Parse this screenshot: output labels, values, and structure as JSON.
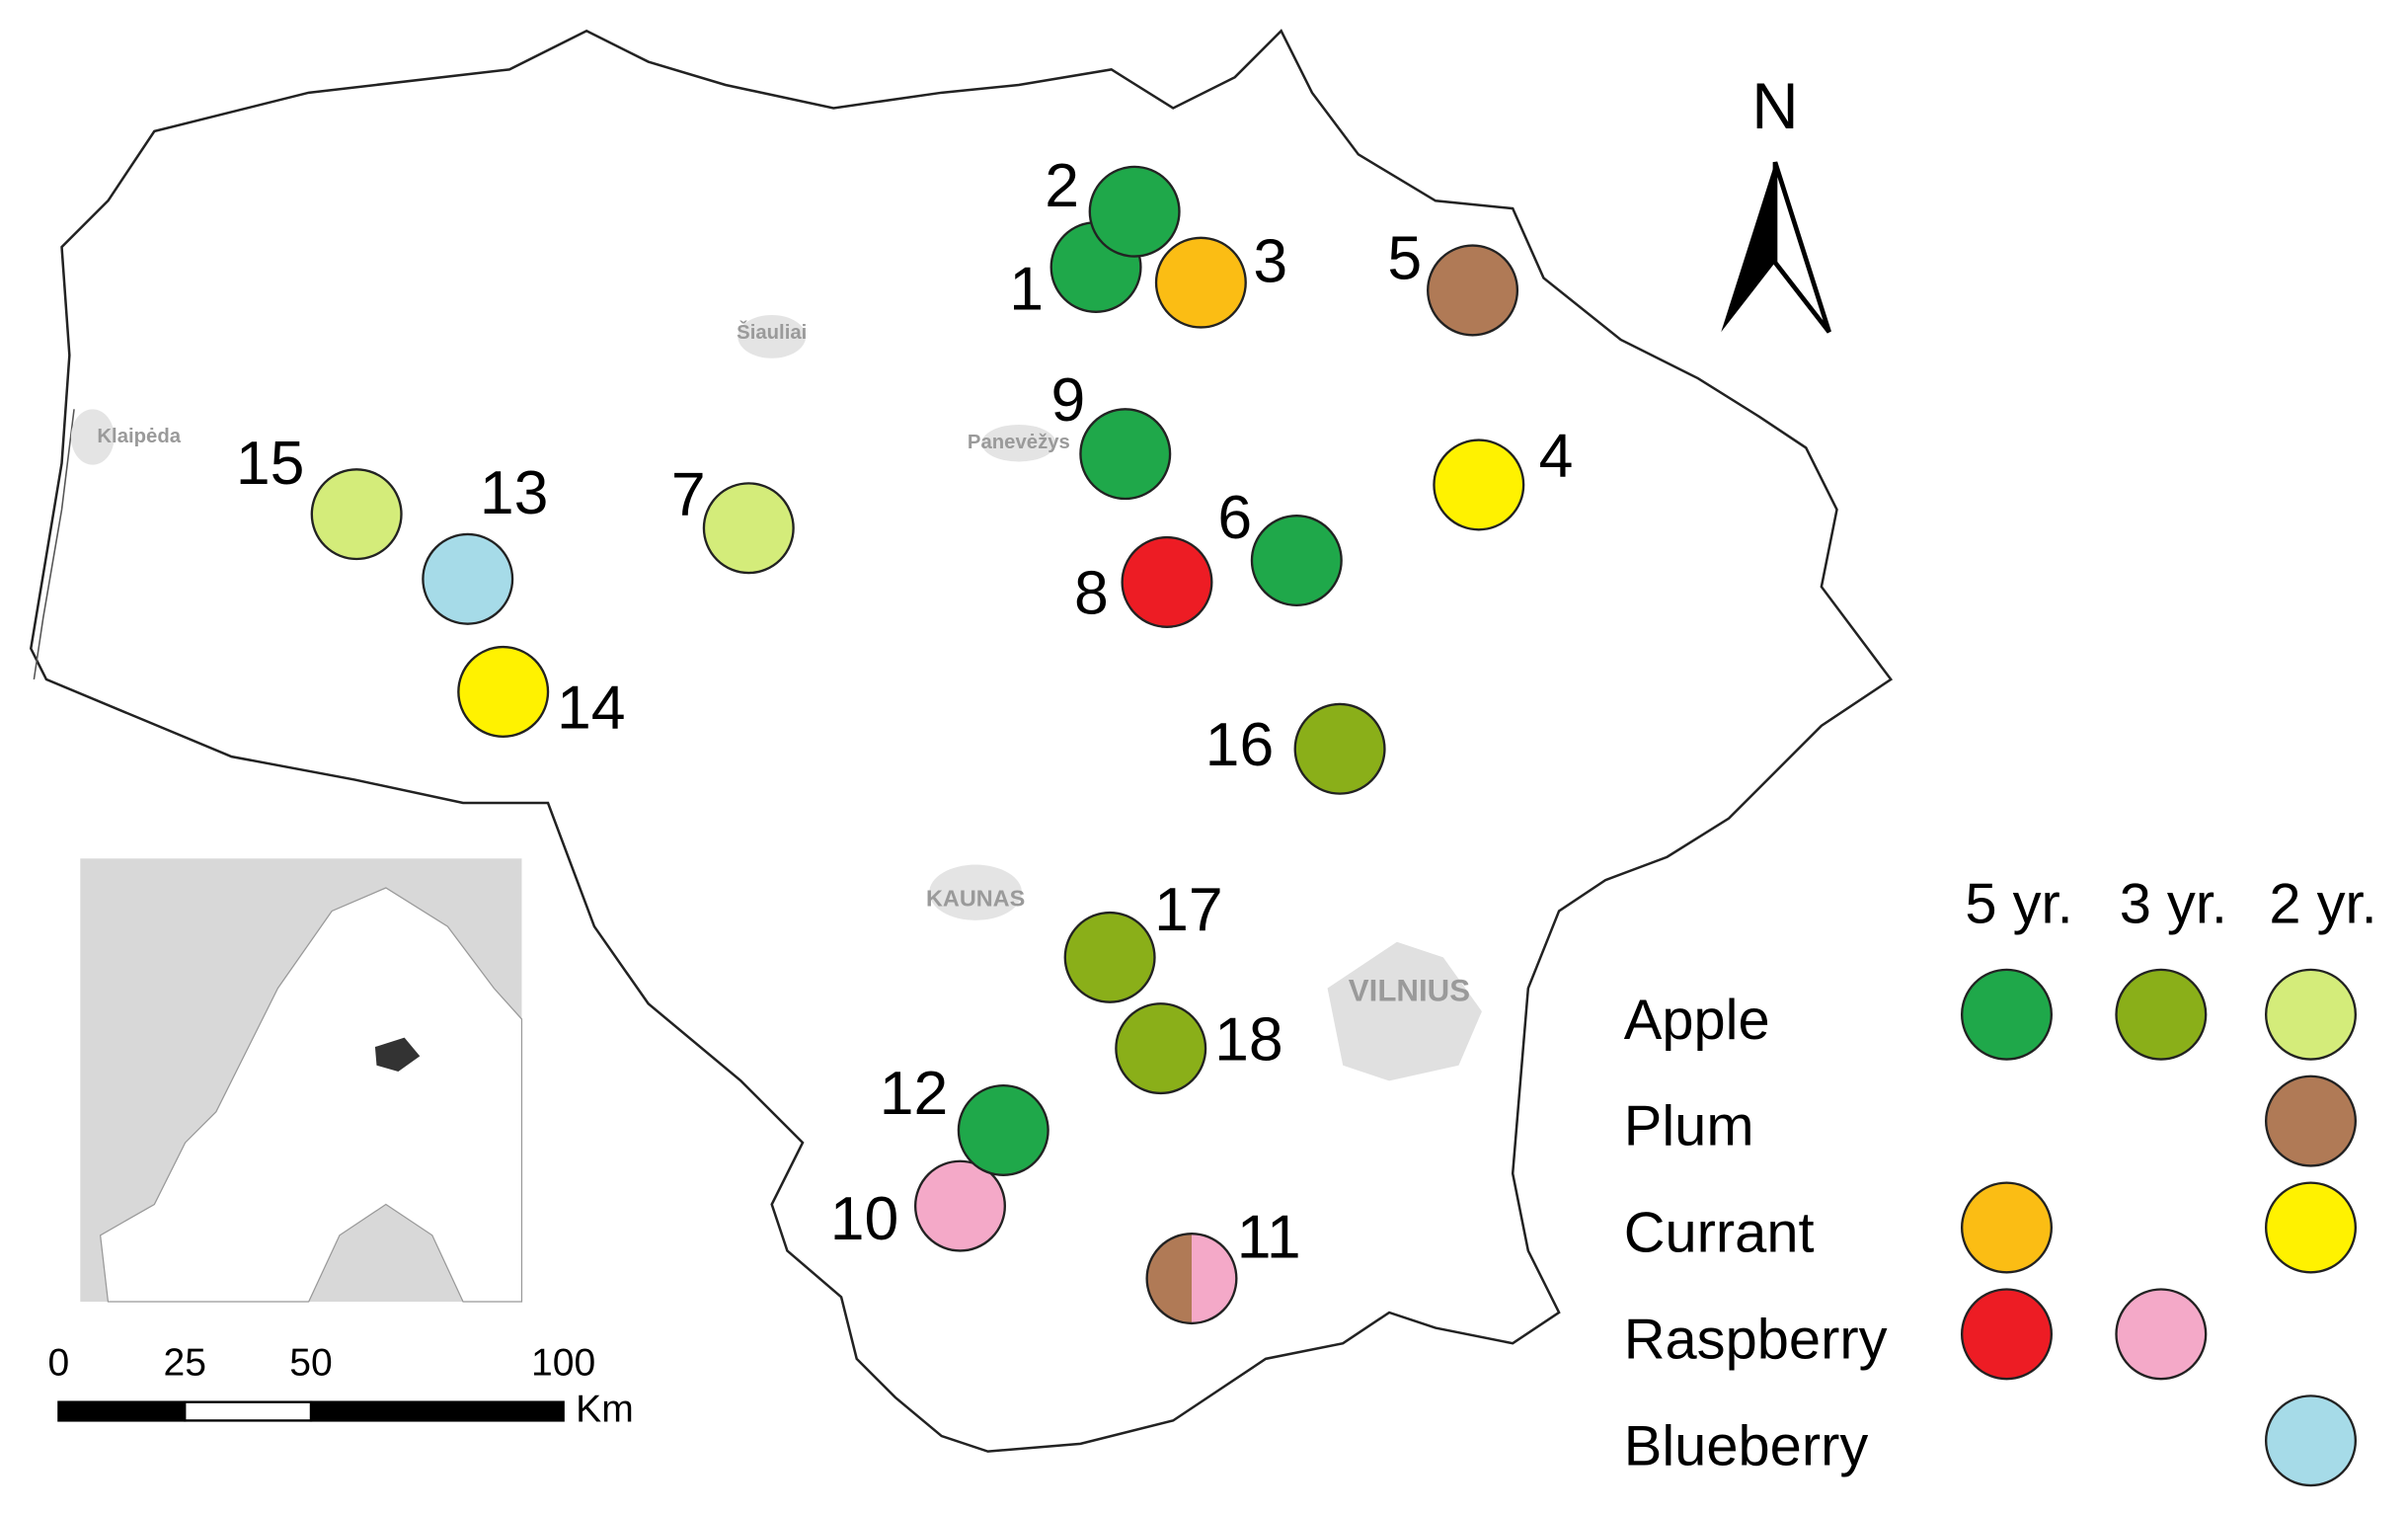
{
  "map": {
    "sites": [
      {
        "label": "1",
        "colors": [
          "#1fa84a"
        ]
      },
      {
        "label": "2",
        "colors": [
          "#1fa84a"
        ]
      },
      {
        "label": "3",
        "colors": [
          "#fbbd14"
        ]
      },
      {
        "label": "4",
        "colors": [
          "#fff200"
        ]
      },
      {
        "label": "5",
        "colors": [
          "#b07a56"
        ]
      },
      {
        "label": "6",
        "colors": [
          "#1fa84a"
        ]
      },
      {
        "label": "7",
        "colors": [
          "#d4ec7a"
        ]
      },
      {
        "label": "8",
        "colors": [
          "#ed1c24"
        ]
      },
      {
        "label": "9",
        "colors": [
          "#1fa84a"
        ]
      },
      {
        "label": "10",
        "colors": [
          "#f4a9c8"
        ]
      },
      {
        "label": "11",
        "colors": [
          "#b07a56",
          "#f4a9c8"
        ]
      },
      {
        "label": "12",
        "colors": [
          "#1fa84a"
        ]
      },
      {
        "label": "13",
        "colors": [
          "#a6dbe8"
        ]
      },
      {
        "label": "14",
        "colors": [
          "#fff200"
        ]
      },
      {
        "label": "15",
        "colors": [
          "#d4ec7a"
        ]
      },
      {
        "label": "16",
        "colors": [
          "#8aaf19"
        ]
      },
      {
        "label": "17",
        "colors": [
          "#8aaf19"
        ]
      },
      {
        "label": "18",
        "colors": [
          "#8aaf19"
        ]
      }
    ],
    "cities": [
      "Šiauliai",
      "Klaipėda",
      "Panevėžys",
      "KAUNAS",
      "VILNIUS"
    ],
    "north": "N"
  },
  "legend": {
    "columns": [
      "5 yr.",
      "3 yr.",
      "2 yr."
    ],
    "rows": [
      {
        "label": "Apple",
        "colors": [
          "#1fa84a",
          "#8aaf19",
          "#d4ec7a"
        ]
      },
      {
        "label": "Plum",
        "colors": [
          null,
          null,
          "#b07a56"
        ]
      },
      {
        "label": "Currant",
        "colors": [
          "#fbbd14",
          null,
          "#fff200"
        ]
      },
      {
        "label": "Raspberry",
        "colors": [
          "#ed1c24",
          "#f4a9c8",
          null
        ]
      },
      {
        "label": "Blueberry",
        "colors": [
          null,
          null,
          "#a6dbe8"
        ]
      }
    ]
  },
  "scale_bar": {
    "ticks": [
      0,
      25,
      50,
      100
    ],
    "unit": "Km"
  }
}
